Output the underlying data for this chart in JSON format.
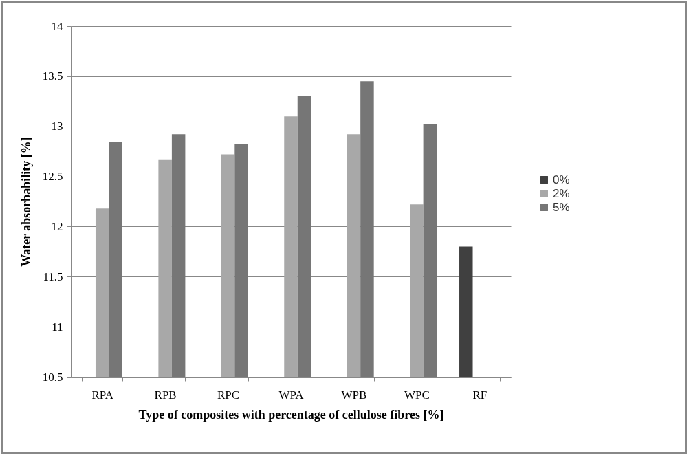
{
  "chart_data": {
    "type": "bar",
    "xlabel": "Type of composites with percentage of cellulose fibres [%]",
    "ylabel": "Water absorbability  [%]",
    "categories": [
      "RPA",
      "RPB",
      "RPC",
      "WPA",
      "WPB",
      "WPC",
      "RF"
    ],
    "series": [
      {
        "name": "0%",
        "color": "#404040",
        "values": [
          null,
          null,
          null,
          null,
          null,
          null,
          11.8
        ]
      },
      {
        "name": "2%",
        "color": "#a8a8a8",
        "values": [
          12.18,
          12.67,
          12.72,
          13.1,
          12.92,
          12.22,
          null
        ]
      },
      {
        "name": "5%",
        "color": "#767676",
        "values": [
          12.84,
          12.92,
          12.82,
          13.3,
          13.45,
          13.02,
          null
        ]
      }
    ],
    "ylim": [
      10.5,
      14
    ],
    "yticks": [
      10.5,
      11,
      11.5,
      12,
      12.5,
      13,
      13.5,
      14
    ],
    "grid": "y",
    "legend": "right"
  }
}
